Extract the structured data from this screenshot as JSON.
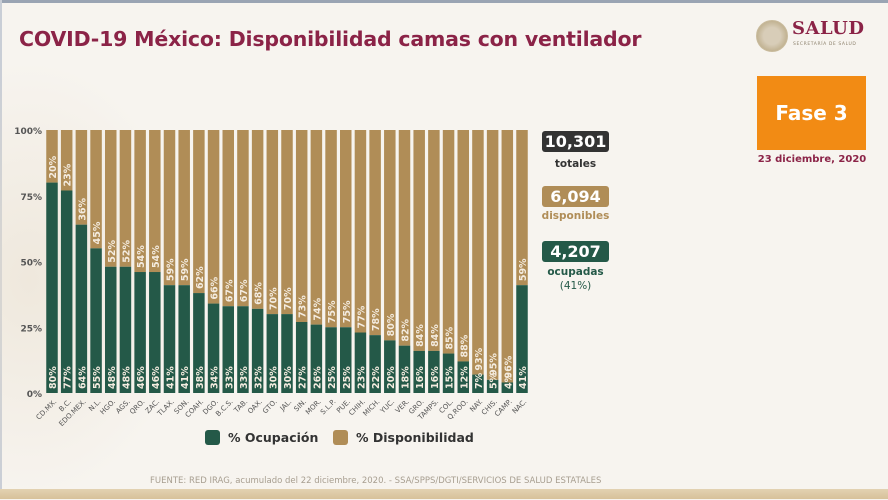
{
  "header": {
    "title": "COVID-19 México: Disponibilidad camas con ventilador",
    "logo_text": "SALUD",
    "logo_subtext": "SECRETARÍA DE SALUD"
  },
  "badge": {
    "label": "Fase 3",
    "color": "#f28b14"
  },
  "date": "23 diciembre, 2020",
  "stats": {
    "totales": {
      "value": "10,301",
      "label": "totales",
      "color": "#333333"
    },
    "disponibles": {
      "value": "6,094",
      "label": "disponibles",
      "color": "#b08d57"
    },
    "ocupadas": {
      "value": "4,207",
      "label": "ocupadas",
      "pct": "(41%)",
      "color": "#245948"
    }
  },
  "footer": "FUENTE: RED IRAG, acumulado del 22 diciembre, 2020. -  SSA/SPPS/DGTI/SERVICIOS DE SALUD ESTATALES",
  "colors": {
    "ocupacion": "#245948",
    "disponibilidad": "#b08d57",
    "label_text": "#f4ece0"
  },
  "chart_data": {
    "type": "bar",
    "stacked": true,
    "percent": true,
    "title": "COVID-19 México: Disponibilidad camas con ventilador",
    "xlabel": "",
    "ylabel": "",
    "ylim": [
      0,
      100
    ],
    "yticks": [
      "0%",
      "25%",
      "50%",
      "75%",
      "100%"
    ],
    "grid": false,
    "legend_position": "bottom",
    "categories": [
      "CD.MX.",
      "B.C.",
      "EDO.MEX.",
      "N.L.",
      "HGO.",
      "AGS.",
      "QRO.",
      "ZAC.",
      "TLAX.",
      "SON.",
      "COAH.",
      "DGO.",
      "B.C.S.",
      "TAB.",
      "OAX.",
      "GTO.",
      "JAL.",
      "SIN.",
      "MOR.",
      "S.L.P.",
      "PUE.",
      "CHIH.",
      "MICH.",
      "YUC.",
      "VER.",
      "GRO.",
      "TAMPS.",
      "COL.",
      "Q.ROO.",
      "NAY.",
      "CHIS.",
      "CAMP.",
      "NAC."
    ],
    "series": [
      {
        "name": "% Ocupación",
        "color": "#245948",
        "values": [
          80,
          77,
          64,
          55,
          48,
          48,
          46,
          46,
          41,
          41,
          38,
          34,
          33,
          33,
          32,
          30,
          30,
          27,
          26,
          25,
          25,
          23,
          22,
          20,
          18,
          16,
          16,
          15,
          12,
          7,
          5,
          4,
          41
        ]
      },
      {
        "name": "% Disponibilidad",
        "color": "#b08d57",
        "values": [
          20,
          23,
          36,
          45,
          52,
          52,
          54,
          54,
          59,
          59,
          62,
          66,
          67,
          67,
          68,
          70,
          70,
          73,
          74,
          75,
          75,
          77,
          78,
          80,
          82,
          84,
          84,
          85,
          88,
          93,
          95,
          96,
          59
        ]
      }
    ]
  }
}
